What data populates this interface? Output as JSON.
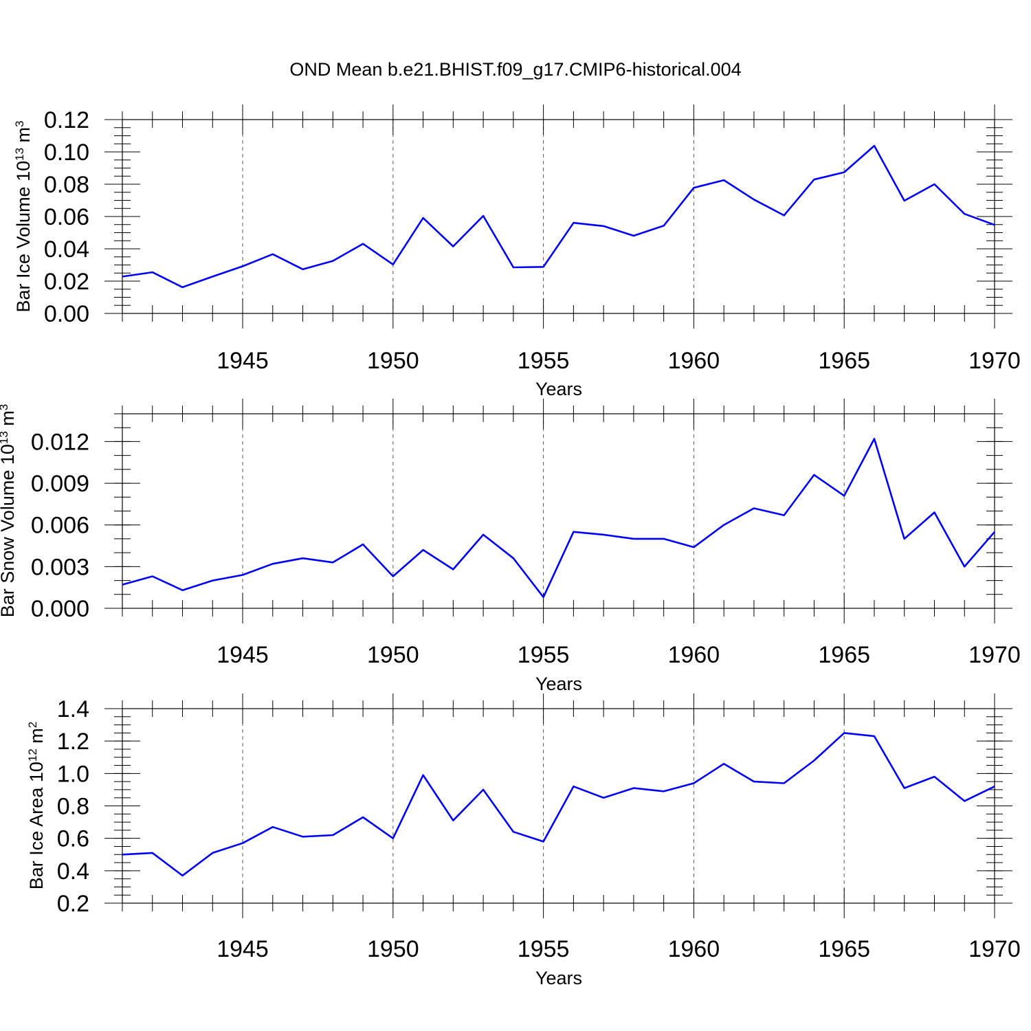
{
  "title": "OND Mean b.e21.BHIST.f09_g17.CMIP6-historical.004",
  "colors": {
    "series": "#0000ff",
    "frame": "#000000"
  },
  "chart_data": [
    {
      "type": "line",
      "title": "OND Mean b.e21.BHIST.f09_g17.CMIP6-historical.004",
      "ylabel_base": "Bar Ice Volume 10",
      "ylabel_exp": "13",
      "ylabel_unit": " m",
      "ylabel_unit_exp": "3",
      "xlabel": "Years",
      "grid": true,
      "xlim": [
        1941,
        1970
      ],
      "ylim": [
        0.0,
        0.12
      ],
      "xticks": [
        1945,
        1950,
        1955,
        1960,
        1965,
        1970
      ],
      "yticks": [
        "0.00",
        "0.02",
        "0.04",
        "0.06",
        "0.08",
        "0.10",
        "0.12"
      ],
      "yticks_values": [
        0.0,
        0.02,
        0.04,
        0.06,
        0.08,
        0.1,
        0.12
      ],
      "yminor_step": 0.005,
      "x": [
        1941,
        1942,
        1943,
        1944,
        1945,
        1946,
        1947,
        1948,
        1949,
        1950,
        1951,
        1952,
        1953,
        1954,
        1955,
        1956,
        1957,
        1958,
        1959,
        1960,
        1961,
        1962,
        1963,
        1964,
        1965,
        1966,
        1967,
        1968,
        1969,
        1970
      ],
      "values": [
        0.0228,
        0.0255,
        0.0162,
        0.0228,
        0.0292,
        0.0367,
        0.0273,
        0.0325,
        0.0431,
        0.0303,
        0.0591,
        0.0415,
        0.0604,
        0.0285,
        0.0288,
        0.0561,
        0.0541,
        0.0481,
        0.0543,
        0.0778,
        0.0825,
        0.0705,
        0.0607,
        0.0829,
        0.0874,
        0.1038,
        0.0698,
        0.08,
        0.0616,
        0.0548
      ]
    },
    {
      "type": "line",
      "ylabel_base": "Bar Snow Volume 10",
      "ylabel_exp": "13",
      "ylabel_unit": " m",
      "ylabel_unit_exp": "3",
      "xlabel": "Years",
      "grid": true,
      "xlim": [
        1941,
        1970
      ],
      "ylim": [
        0.0,
        0.014
      ],
      "xticks": [
        1945,
        1950,
        1955,
        1960,
        1965,
        1970
      ],
      "yticks": [
        "0.000",
        "0.003",
        "0.006",
        "0.009",
        "0.012"
      ],
      "yticks_values": [
        0.0,
        0.003,
        0.006,
        0.009,
        0.012
      ],
      "yminor_step": 0.001,
      "x": [
        1941,
        1942,
        1943,
        1944,
        1945,
        1946,
        1947,
        1948,
        1949,
        1950,
        1951,
        1952,
        1953,
        1954,
        1955,
        1956,
        1957,
        1958,
        1959,
        1960,
        1961,
        1962,
        1963,
        1964,
        1965,
        1966,
        1967,
        1968,
        1969,
        1970
      ],
      "values": [
        0.0017,
        0.0023,
        0.0013,
        0.002,
        0.0024,
        0.0032,
        0.0036,
        0.0033,
        0.0046,
        0.0023,
        0.0042,
        0.0028,
        0.0053,
        0.0036,
        0.0008,
        0.0055,
        0.0053,
        0.005,
        0.005,
        0.0044,
        0.006,
        0.0072,
        0.0067,
        0.0096,
        0.0081,
        0.0122,
        0.005,
        0.0069,
        0.003,
        0.0055
      ]
    },
    {
      "type": "line",
      "ylabel_base": "Bar Ice Area 10",
      "ylabel_exp": "12",
      "ylabel_unit": " m",
      "ylabel_unit_exp": "2",
      "xlabel": "Years",
      "grid": true,
      "xlim": [
        1941,
        1970
      ],
      "ylim": [
        0.2,
        1.4
      ],
      "xticks": [
        1945,
        1950,
        1955,
        1960,
        1965,
        1970
      ],
      "yticks": [
        "0.2",
        "0.4",
        "0.6",
        "0.8",
        "1.0",
        "1.2",
        "1.4"
      ],
      "yticks_values": [
        0.2,
        0.4,
        0.6,
        0.8,
        1.0,
        1.2,
        1.4
      ],
      "yminor_step": 0.05,
      "x": [
        1941,
        1942,
        1943,
        1944,
        1945,
        1946,
        1947,
        1948,
        1949,
        1950,
        1951,
        1952,
        1953,
        1954,
        1955,
        1956,
        1957,
        1958,
        1959,
        1960,
        1961,
        1962,
        1963,
        1964,
        1965,
        1966,
        1967,
        1968,
        1969,
        1970
      ],
      "values": [
        0.5,
        0.51,
        0.37,
        0.51,
        0.57,
        0.67,
        0.61,
        0.62,
        0.73,
        0.6,
        0.99,
        0.71,
        0.9,
        0.64,
        0.58,
        0.92,
        0.85,
        0.91,
        0.89,
        0.94,
        1.06,
        0.95,
        0.94,
        1.08,
        1.25,
        1.23,
        0.91,
        0.98,
        0.83,
        0.92
      ]
    }
  ]
}
